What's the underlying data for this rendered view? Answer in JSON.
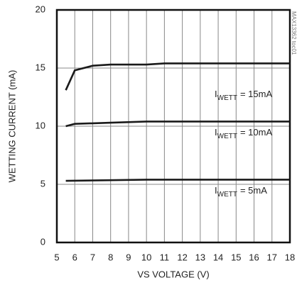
{
  "chart_data": {
    "type": "line",
    "xlabel": "VS VOLTAGE (V)",
    "ylabel": "WETTING CURRENT (mA)",
    "watermark": "MAX13362 toc01",
    "xlim": [
      5,
      18
    ],
    "xticks": [
      5,
      6,
      7,
      8,
      9,
      10,
      11,
      12,
      13,
      14,
      15,
      16,
      17,
      18
    ],
    "ylim": [
      0,
      20
    ],
    "yticks": [
      0,
      5,
      10,
      15,
      20
    ],
    "grid": true,
    "series": [
      {
        "label": {
          "base": "I",
          "sub": "WETT",
          "text": "= 15mA"
        },
        "color": "#1a1a1a",
        "x": [
          5.5,
          6,
          7,
          8,
          10,
          11,
          18
        ],
        "values": [
          13.1,
          14.8,
          15.2,
          15.3,
          15.3,
          15.4,
          15.4
        ]
      },
      {
        "label": {
          "base": "I",
          "sub": "WETT",
          "text": "= 10mA"
        },
        "color": "#1a1a1a",
        "x": [
          5.5,
          6,
          8,
          10,
          18
        ],
        "values": [
          10.0,
          10.2,
          10.3,
          10.4,
          10.4
        ]
      },
      {
        "label": {
          "base": "I",
          "sub": "WETT",
          "text": "= 5mA"
        },
        "color": "#1a1a1a",
        "x": [
          5.5,
          10,
          18
        ],
        "values": [
          5.3,
          5.4,
          5.4
        ]
      }
    ]
  }
}
